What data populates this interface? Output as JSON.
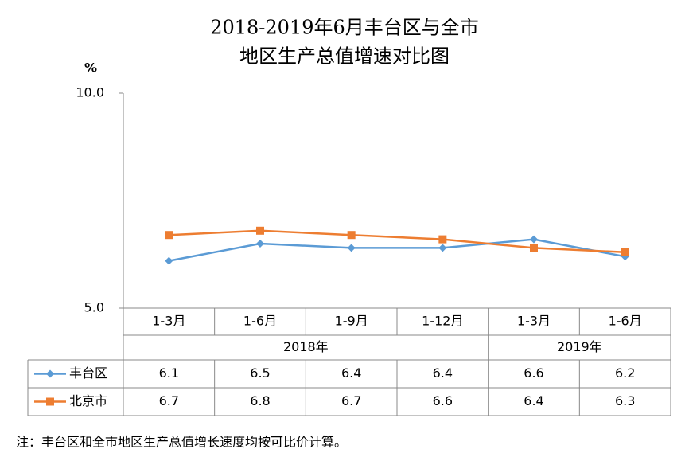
{
  "chart_data": {
    "type": "line",
    "title": "2018-2019年6月丰台区与全市",
    "subtitle": "地区生产总值增速对比图",
    "y_label": "%",
    "groups": [
      {
        "label": "2018年",
        "categories": [
          "1-3月",
          "1-6月",
          "1-9月",
          "1-12月"
        ]
      },
      {
        "label": "2019年",
        "categories": [
          "1-3月",
          "1-6月"
        ]
      }
    ],
    "series": [
      {
        "name": "丰台区",
        "color": "#5b9bd5",
        "marker": "diamond",
        "values": [
          6.1,
          6.5,
          6.4,
          6.4,
          6.6,
          6.2
        ]
      },
      {
        "name": "北京市",
        "color": "#ed7d31",
        "marker": "square",
        "values": [
          6.7,
          6.8,
          6.7,
          6.6,
          6.4,
          6.3
        ]
      }
    ],
    "ylim": [
      5,
      10
    ],
    "yticks": [
      {
        "value": 5,
        "label": "5.0"
      },
      {
        "value": 10,
        "label": "10.0"
      }
    ],
    "note": "注：丰台区和全市地区生产总值增长速度均按可比价计算。"
  }
}
